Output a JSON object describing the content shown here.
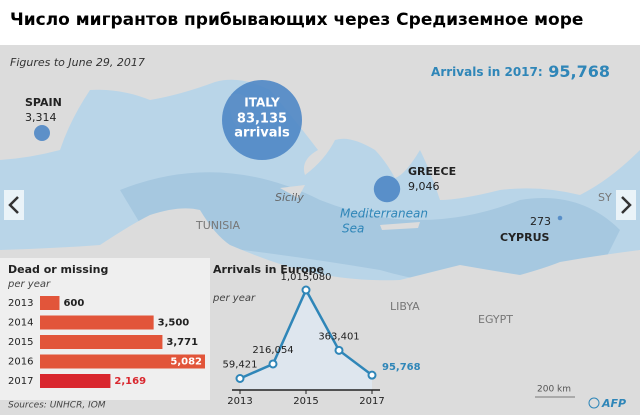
{
  "title": "Число мигрантов прибывающих через Средиземное море",
  "note": "Figures to June 29, 2017",
  "total": {
    "label": "Arrivals in 2017:",
    "value": {
      "value": 95768,
      "label": "95,768"
    }
  },
  "map": {
    "bubble_color": "#4f87c5",
    "countries": [
      {
        "name": "SPAIN",
        "arrivals": {
          "value": 3314,
          "label": "3,314"
        }
      },
      {
        "name": "ITALY",
        "arrivals": {
          "value": 83135,
          "label": "83,135"
        },
        "unit": "arrivals"
      },
      {
        "name": "GREECE",
        "arrivals": {
          "value": 9046,
          "label": "9,046"
        }
      },
      {
        "name": "CYPRUS",
        "arrivals": 273
      }
    ],
    "labels": [
      "Sicily",
      "Mediterranean",
      "Sea",
      "TUNISIA",
      "LIBYA",
      "EGYPT",
      "SY"
    ],
    "scale": "200 km"
  },
  "chart_data": [
    {
      "type": "bar",
      "title": "Dead or missing",
      "subtitle": "per year",
      "categories": [
        "2013",
        "2014",
        "2015",
        "2016",
        "2017"
      ],
      "values": [
        600,
        3500,
        3771,
        5082,
        2169
      ],
      "value_labels": [
        "600",
        "3,500",
        "3,771",
        "5,082",
        "2,169"
      ],
      "colors": [
        "#e2553a",
        "#e2553a",
        "#e2553a",
        "#e2553a",
        "#d9272e"
      ]
    },
    {
      "type": "line",
      "title": "Arrivals in Europe",
      "subtitle": "per year",
      "x": [
        2013,
        2014,
        2015,
        2016,
        2017
      ],
      "xlim": [
        2013,
        2017
      ],
      "xticks": [
        2013,
        2015,
        2017
      ],
      "values": [
        59421,
        216054,
        1015080,
        363401,
        95768
      ],
      "value_labels": [
        "59,421",
        "216,054",
        "1,015,080",
        "363,401",
        "95,768"
      ],
      "color": "#2f86b8"
    }
  ],
  "sources": "Sources: UNHCR, IOM",
  "credit": "AFP"
}
